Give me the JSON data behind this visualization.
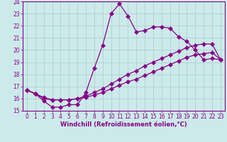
{
  "xlabel": "Windchill (Refroidissement éolien,°C)",
  "xlim": [
    -0.5,
    23.5
  ],
  "ylim": [
    15,
    24
  ],
  "yticks": [
    15,
    16,
    17,
    18,
    19,
    20,
    21,
    22,
    23,
    24
  ],
  "xticks": [
    0,
    1,
    2,
    3,
    4,
    5,
    6,
    7,
    8,
    9,
    10,
    11,
    12,
    13,
    14,
    15,
    16,
    17,
    18,
    19,
    20,
    21,
    22,
    23
  ],
  "bg_color": "#cceaea",
  "grid_color": "#aacccc",
  "line_color": "#880088",
  "line1_x": [
    0,
    1,
    2,
    3,
    4,
    5,
    6,
    7,
    8,
    9,
    10,
    11,
    12,
    13,
    14,
    15,
    16,
    17,
    18,
    19,
    20,
    21,
    22,
    23
  ],
  "line1_y": [
    16.7,
    16.4,
    15.8,
    15.3,
    15.3,
    15.5,
    15.5,
    16.5,
    18.5,
    20.4,
    23.0,
    23.8,
    22.8,
    21.5,
    21.6,
    21.9,
    21.9,
    21.8,
    21.1,
    20.7,
    20.0,
    19.2,
    19.3,
    19.2
  ],
  "line2_x": [
    0,
    1,
    2,
    3,
    4,
    5,
    6,
    7,
    8,
    9,
    10,
    11,
    12,
    13,
    14,
    15,
    16,
    17,
    18,
    19,
    20,
    21,
    22,
    23
  ],
  "line2_y": [
    16.7,
    16.4,
    16.0,
    15.9,
    15.9,
    15.9,
    16.0,
    16.1,
    16.3,
    16.5,
    16.8,
    17.1,
    17.4,
    17.6,
    17.9,
    18.2,
    18.5,
    18.8,
    19.1,
    19.4,
    19.6,
    19.7,
    19.8,
    19.2
  ],
  "line3_x": [
    0,
    1,
    2,
    3,
    4,
    5,
    6,
    7,
    8,
    9,
    10,
    11,
    12,
    13,
    14,
    15,
    16,
    17,
    18,
    19,
    20,
    21,
    22,
    23
  ],
  "line3_y": [
    16.7,
    16.4,
    16.1,
    15.9,
    15.9,
    15.9,
    16.0,
    16.2,
    16.5,
    16.8,
    17.2,
    17.6,
    18.0,
    18.3,
    18.7,
    19.0,
    19.3,
    19.6,
    19.9,
    20.2,
    20.4,
    20.5,
    20.5,
    19.2
  ],
  "tick_fontsize": 5.5,
  "xlabel_fontsize": 6.0,
  "marker_size": 3.0,
  "line_width": 0.9
}
